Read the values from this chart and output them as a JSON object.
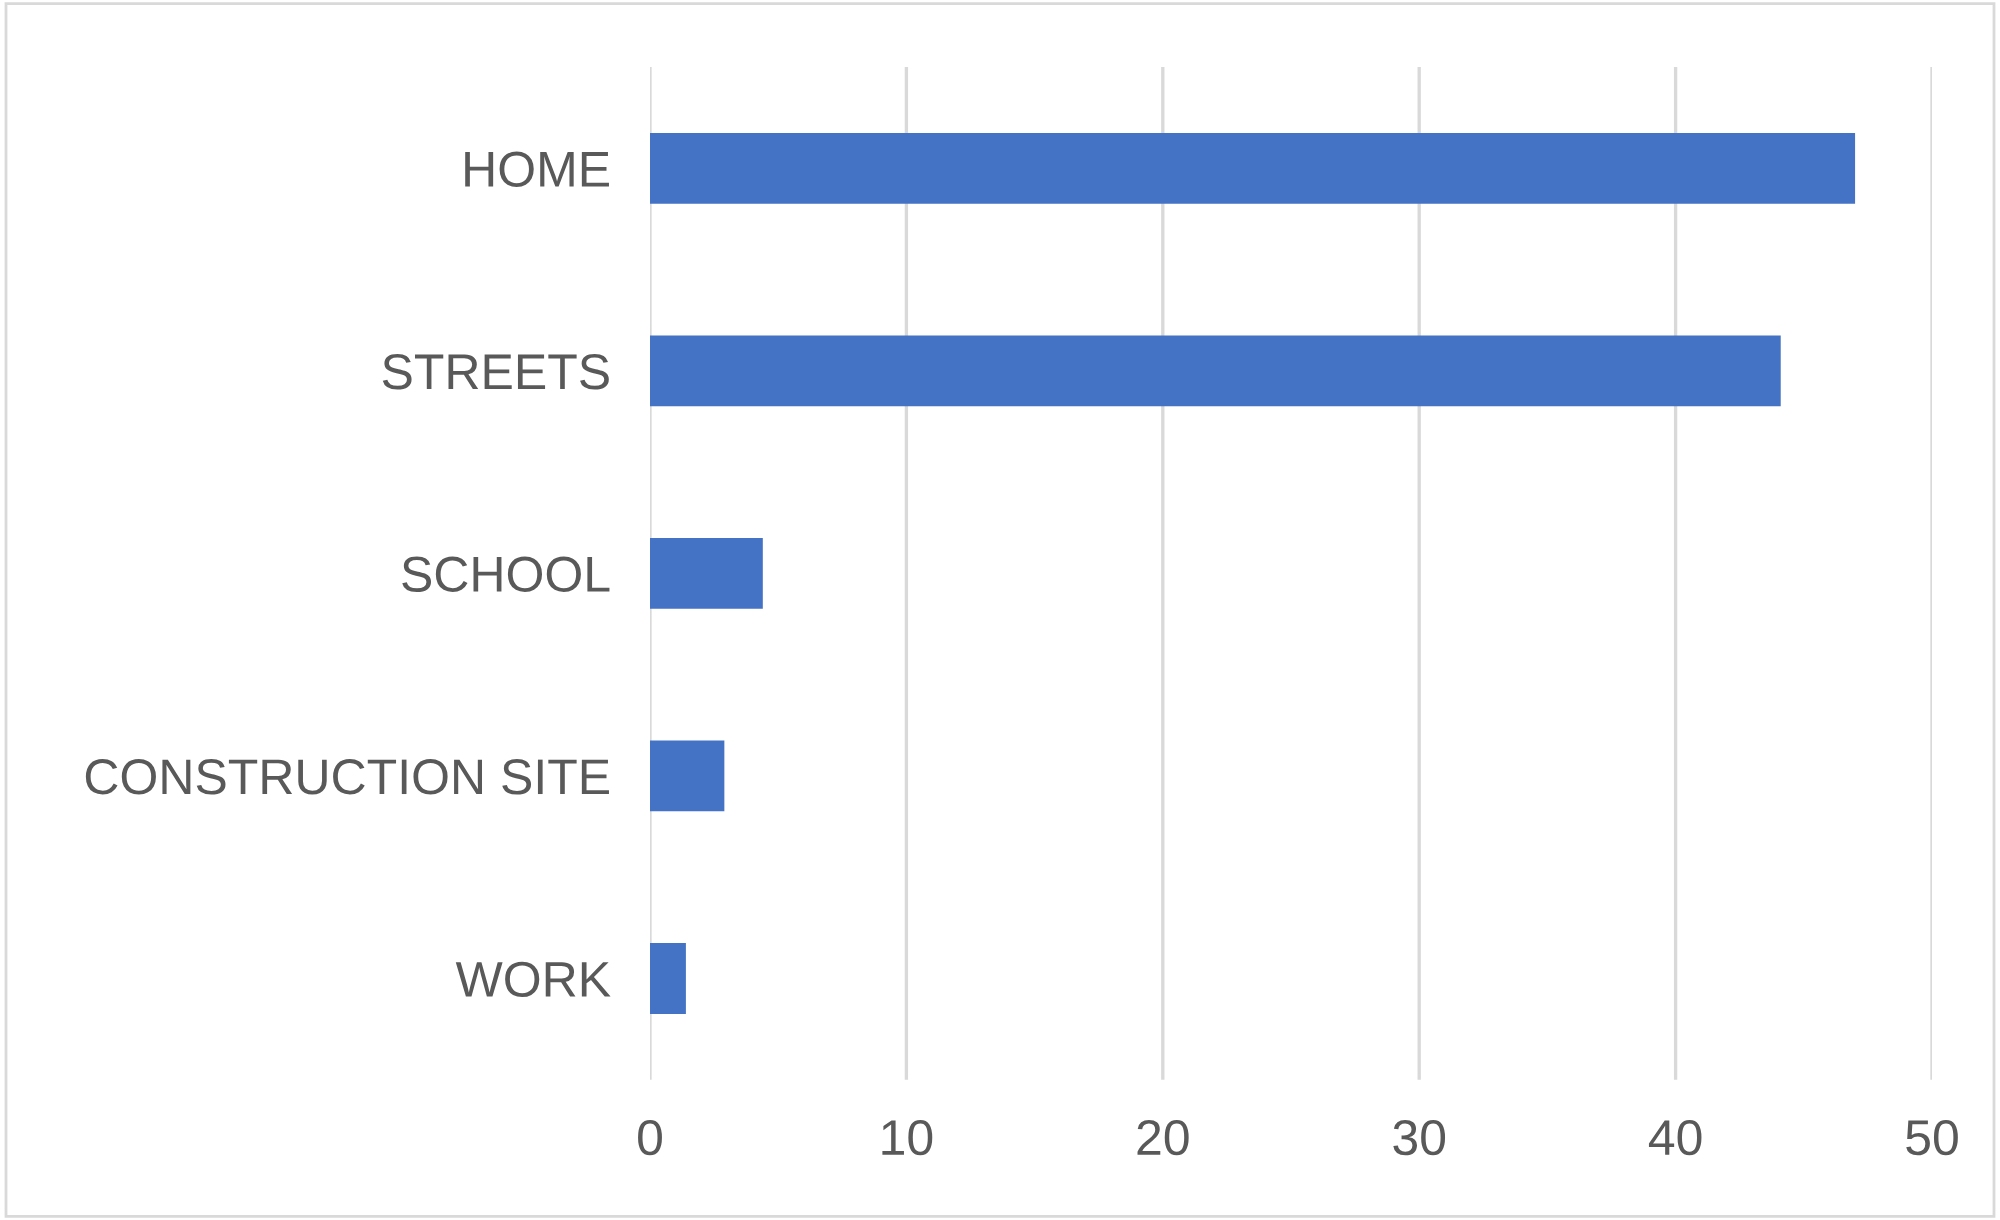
{
  "chart_data": {
    "type": "bar",
    "orientation": "horizontal",
    "categories": [
      "HOME",
      "STREETS",
      "SCHOOL",
      "CONSTRUCTION SITE",
      "WORK"
    ],
    "values": [
      47.0,
      44.1,
      4.4,
      2.9,
      1.4
    ],
    "color": "#4472c4",
    "xlim": [
      0,
      50
    ],
    "xticks": [
      0,
      10,
      20,
      30,
      40,
      50
    ],
    "grid": "x"
  }
}
